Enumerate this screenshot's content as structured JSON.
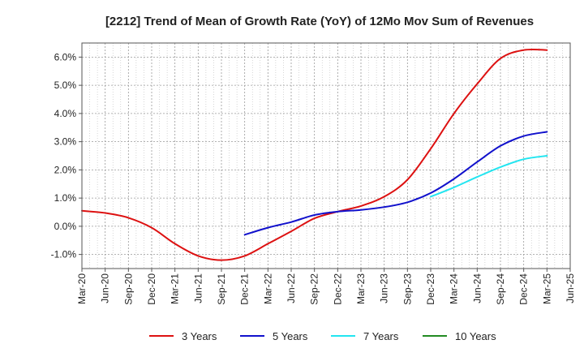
{
  "chart_data": {
    "type": "line",
    "title": "[2212]  Trend of Mean of Growth Rate (YoY) of 12Mo Mov Sum of Revenues",
    "xlabel": "",
    "ylabel": "",
    "x_ticks": [
      "Mar-20",
      "Jun-20",
      "Sep-20",
      "Dec-20",
      "Mar-21",
      "Jun-21",
      "Sep-21",
      "Dec-21",
      "Mar-22",
      "Jun-22",
      "Sep-22",
      "Dec-22",
      "Mar-23",
      "Jun-23",
      "Sep-23",
      "Dec-23",
      "Mar-24",
      "Jun-24",
      "Sep-24",
      "Dec-24",
      "Mar-25",
      "Jun-25"
    ],
    "y_ticks": [
      "-1.0%",
      "0.0%",
      "1.0%",
      "2.0%",
      "3.0%",
      "4.0%",
      "5.0%",
      "6.0%"
    ],
    "y_tick_values": [
      -1,
      0,
      1,
      2,
      3,
      4,
      5,
      6
    ],
    "ylim": [
      -1.5,
      6.5
    ],
    "grid": true,
    "legend_position": "bottom",
    "series": [
      {
        "name": "3 Years",
        "color": "#dd1111",
        "values": [
          0.55,
          0.47,
          0.3,
          -0.05,
          -0.62,
          -1.05,
          -1.2,
          -1.05,
          -0.62,
          -0.18,
          0.28,
          0.52,
          0.72,
          1.05,
          1.65,
          2.75,
          4.0,
          5.05,
          5.95,
          6.25,
          6.25,
          null
        ]
      },
      {
        "name": "5 Years",
        "color": "#1111cc",
        "values": [
          null,
          null,
          null,
          null,
          null,
          null,
          null,
          -0.3,
          -0.05,
          0.15,
          0.4,
          0.52,
          0.58,
          0.68,
          0.85,
          1.18,
          1.68,
          2.28,
          2.85,
          3.2,
          3.35,
          null
        ]
      },
      {
        "name": "7 Years",
        "color": "#22e5f0",
        "values": [
          null,
          null,
          null,
          null,
          null,
          null,
          null,
          null,
          null,
          null,
          null,
          null,
          null,
          null,
          null,
          1.05,
          1.38,
          1.75,
          2.1,
          2.38,
          2.5,
          null
        ]
      },
      {
        "name": "10 Years",
        "color": "#228b22",
        "values": [
          null,
          null,
          null,
          null,
          null,
          null,
          null,
          null,
          null,
          null,
          null,
          null,
          null,
          null,
          null,
          null,
          null,
          null,
          null,
          null,
          null,
          null
        ]
      }
    ]
  }
}
